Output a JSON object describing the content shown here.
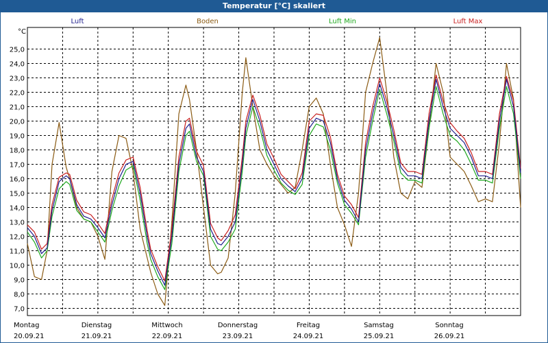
{
  "header": {
    "title": "Temperatur [°C] skaliert"
  },
  "colors": {
    "titlebar": "#1f5a94",
    "luft": "#1c1c8c",
    "boden": "#8a5a12",
    "luft_min": "#1ea81e",
    "luft_max": "#c81e1e"
  },
  "chart_data": {
    "type": "line",
    "title": "Temperatur [°C] skaliert",
    "ylabel": "°C",
    "ylim": [
      6.5,
      26.5
    ],
    "yticks": [
      "7,0",
      "8,0",
      "9,0",
      "10,0",
      "11,0",
      "12,0",
      "13,0",
      "14,0",
      "15,0",
      "16,0",
      "17,0",
      "18,0",
      "19,0",
      "20,0",
      "21,0",
      "22,0",
      "23,0",
      "24,0",
      "25,0"
    ],
    "xlim": [
      0,
      7
    ],
    "days": [
      {
        "weekday": "Montag",
        "date": "20.09.21"
      },
      {
        "weekday": "Dienstag",
        "date": "21.09.21"
      },
      {
        "weekday": "Mittwoch",
        "date": "22.09.21"
      },
      {
        "weekday": "Donnerstag",
        "date": "23.09.21"
      },
      {
        "weekday": "Freitag",
        "date": "24.09.21"
      },
      {
        "weekday": "Samstag",
        "date": "25.09.21"
      },
      {
        "weekday": "Sonntag",
        "date": "26.09.21"
      }
    ],
    "grid": true,
    "legend_position": "top",
    "series": [
      {
        "name": "Luft",
        "color": "#1c1c8c",
        "x": [
          0,
          0.1,
          0.2,
          0.28,
          0.35,
          0.45,
          0.55,
          0.6,
          0.7,
          0.8,
          0.9,
          1.0,
          1.1,
          1.2,
          1.3,
          1.4,
          1.5,
          1.6,
          1.7,
          1.75,
          1.85,
          1.95,
          2.05,
          2.15,
          2.25,
          2.3,
          2.4,
          2.5,
          2.6,
          2.7,
          2.75,
          2.85,
          2.95,
          3.05,
          3.1,
          3.2,
          3.3,
          3.4,
          3.5,
          3.6,
          3.7,
          3.8,
          3.9,
          4.0,
          4.1,
          4.2,
          4.3,
          4.4,
          4.5,
          4.6,
          4.7,
          4.8,
          4.9,
          5.0,
          5.1,
          5.2,
          5.3,
          5.4,
          5.5,
          5.6,
          5.7,
          5.8,
          5.9,
          6.0,
          6.1,
          6.2,
          6.3,
          6.4,
          6.5,
          6.6,
          6.7,
          6.8,
          6.9,
          7.0
        ],
        "y": [
          12.6,
          12.0,
          10.8,
          11.2,
          13.8,
          15.8,
          16.2,
          16.0,
          14.2,
          13.4,
          13.2,
          12.6,
          11.9,
          14.2,
          16.0,
          17.0,
          17.2,
          15.0,
          12.0,
          10.8,
          9.6,
          8.6,
          12.0,
          17.0,
          19.5,
          19.8,
          17.5,
          16.5,
          12.5,
          11.5,
          11.4,
          12.0,
          13.0,
          17.0,
          19.5,
          21.5,
          20.0,
          18.0,
          17.0,
          16.0,
          15.5,
          15.1,
          16.0,
          19.5,
          20.2,
          20.0,
          18.5,
          16.0,
          14.5,
          13.9,
          13.0,
          18.0,
          20.5,
          22.6,
          21.0,
          19.0,
          16.8,
          16.2,
          16.2,
          16.0,
          20.0,
          22.9,
          21.0,
          19.5,
          19.0,
          18.5,
          17.5,
          16.2,
          16.2,
          16.0,
          20.0,
          22.9,
          21.0,
          16.4
        ]
      },
      {
        "name": "Boden",
        "color": "#8a5a12",
        "x": [
          0,
          0.1,
          0.2,
          0.28,
          0.35,
          0.45,
          0.55,
          0.6,
          0.7,
          0.8,
          0.9,
          1.0,
          1.1,
          1.2,
          1.3,
          1.4,
          1.5,
          1.6,
          1.7,
          1.75,
          1.85,
          1.95,
          2.05,
          2.15,
          2.25,
          2.3,
          2.4,
          2.5,
          2.6,
          2.7,
          2.75,
          2.85,
          2.95,
          3.05,
          3.1,
          3.2,
          3.3,
          3.4,
          3.5,
          3.6,
          3.7,
          3.8,
          3.9,
          4.0,
          4.1,
          4.2,
          4.3,
          4.4,
          4.5,
          4.6,
          4.7,
          4.8,
          4.9,
          5.0,
          5.1,
          5.2,
          5.3,
          5.4,
          5.5,
          5.6,
          5.7,
          5.8,
          5.9,
          6.0,
          6.1,
          6.2,
          6.3,
          6.4,
          6.5,
          6.6,
          6.7,
          6.8,
          6.9,
          7.0
        ],
        "y": [
          11.5,
          9.2,
          9.0,
          11.0,
          17.0,
          19.9,
          16.8,
          16.0,
          14.0,
          13.2,
          13.0,
          12.0,
          10.4,
          16.5,
          19.0,
          18.8,
          16.5,
          12.5,
          10.5,
          9.5,
          8.0,
          7.2,
          13.0,
          20.5,
          22.5,
          21.5,
          18.0,
          14.0,
          10.0,
          9.4,
          9.5,
          10.5,
          15.0,
          22.0,
          24.4,
          21.0,
          18.0,
          17.0,
          16.2,
          15.6,
          15.0,
          15.4,
          18.0,
          21.0,
          21.6,
          20.5,
          17.0,
          14.0,
          12.8,
          11.3,
          15.0,
          22.0,
          24.0,
          25.8,
          22.0,
          17.5,
          15.0,
          14.6,
          15.8,
          15.4,
          19.5,
          24.0,
          22.0,
          17.5,
          17.0,
          16.5,
          15.5,
          14.4,
          14.6,
          14.4,
          18.5,
          24.0,
          21.5,
          14.0
        ]
      },
      {
        "name": "Luft Min",
        "color": "#1ea81e",
        "x": [
          0,
          0.1,
          0.2,
          0.28,
          0.35,
          0.45,
          0.55,
          0.6,
          0.7,
          0.8,
          0.9,
          1.0,
          1.1,
          1.2,
          1.3,
          1.4,
          1.5,
          1.6,
          1.7,
          1.75,
          1.85,
          1.95,
          2.05,
          2.15,
          2.25,
          2.3,
          2.4,
          2.5,
          2.6,
          2.7,
          2.75,
          2.85,
          2.95,
          3.05,
          3.1,
          3.2,
          3.3,
          3.4,
          3.5,
          3.6,
          3.7,
          3.8,
          3.9,
          4.0,
          4.1,
          4.2,
          4.3,
          4.4,
          4.5,
          4.6,
          4.7,
          4.8,
          4.9,
          5.0,
          5.1,
          5.2,
          5.3,
          5.4,
          5.5,
          5.6,
          5.7,
          5.8,
          5.9,
          6.0,
          6.1,
          6.2,
          6.3,
          6.4,
          6.5,
          6.6,
          6.7,
          6.8,
          6.9,
          7.0
        ],
        "y": [
          12.3,
          11.6,
          10.5,
          11.0,
          13.4,
          15.3,
          15.8,
          15.6,
          13.8,
          13.2,
          13.0,
          12.3,
          11.6,
          13.8,
          15.5,
          16.6,
          16.9,
          14.5,
          11.5,
          10.4,
          9.2,
          8.3,
          11.5,
          16.5,
          19.0,
          19.3,
          17.2,
          16.2,
          12.0,
          11.1,
          11.0,
          11.6,
          12.5,
          16.5,
          19.0,
          21.0,
          19.5,
          17.6,
          16.6,
          15.7,
          15.2,
          14.9,
          15.6,
          19.0,
          19.8,
          19.6,
          18.0,
          15.7,
          14.2,
          13.6,
          12.8,
          17.5,
          20.0,
          22.2,
          20.5,
          18.6,
          16.4,
          15.9,
          15.9,
          15.7,
          19.5,
          22.4,
          20.5,
          19.0,
          18.6,
          18.0,
          17.0,
          15.9,
          15.9,
          15.7,
          19.5,
          22.4,
          20.5,
          16.0
        ]
      },
      {
        "name": "Luft Max",
        "color": "#c81e1e",
        "x": [
          0,
          0.1,
          0.2,
          0.28,
          0.35,
          0.45,
          0.55,
          0.6,
          0.7,
          0.8,
          0.9,
          1.0,
          1.1,
          1.2,
          1.3,
          1.4,
          1.5,
          1.6,
          1.7,
          1.75,
          1.85,
          1.95,
          2.05,
          2.15,
          2.25,
          2.3,
          2.4,
          2.5,
          2.6,
          2.7,
          2.75,
          2.85,
          2.95,
          3.05,
          3.1,
          3.2,
          3.3,
          3.4,
          3.5,
          3.6,
          3.7,
          3.8,
          3.9,
          4.0,
          4.1,
          4.2,
          4.3,
          4.4,
          4.5,
          4.6,
          4.7,
          4.8,
          4.9,
          5.0,
          5.1,
          5.2,
          5.3,
          5.4,
          5.5,
          5.6,
          5.7,
          5.8,
          5.9,
          6.0,
          6.1,
          6.2,
          6.3,
          6.4,
          6.5,
          6.6,
          6.7,
          6.8,
          6.9,
          7.0
        ],
        "y": [
          12.8,
          12.3,
          11.1,
          11.5,
          14.2,
          16.1,
          16.4,
          16.3,
          14.5,
          13.7,
          13.5,
          12.9,
          12.2,
          14.6,
          16.4,
          17.3,
          17.5,
          15.4,
          12.4,
          11.1,
          9.9,
          8.9,
          12.5,
          17.5,
          20.0,
          20.2,
          17.9,
          16.9,
          12.9,
          11.9,
          11.7,
          12.4,
          13.5,
          17.5,
          20.0,
          21.8,
          20.4,
          18.4,
          17.4,
          16.3,
          15.8,
          15.3,
          16.4,
          20.0,
          20.5,
          20.4,
          18.9,
          16.3,
          14.8,
          14.2,
          13.3,
          18.5,
          21.0,
          23.0,
          21.4,
          19.4,
          17.1,
          16.5,
          16.5,
          16.3,
          20.5,
          23.2,
          21.4,
          19.9,
          19.3,
          18.8,
          17.8,
          16.5,
          16.5,
          16.3,
          20.5,
          23.1,
          21.4,
          16.7
        ]
      }
    ]
  }
}
